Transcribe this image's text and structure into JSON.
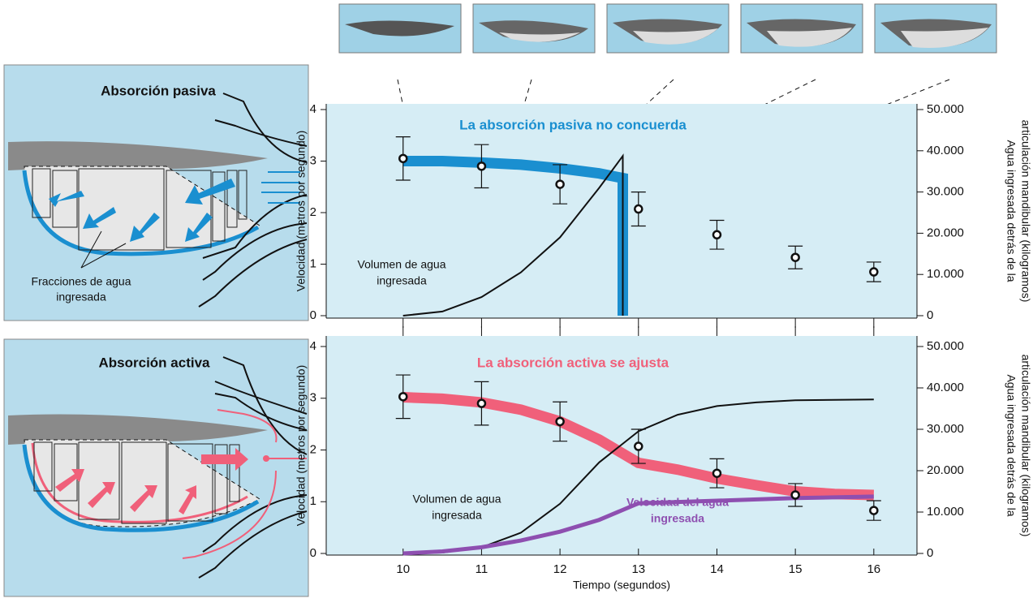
{
  "illustrations": [
    {
      "title": "Absorción pasiva",
      "title_color": "#1a8fd0",
      "caption": [
        "Fracciones de agua",
        "ingresada"
      ]
    },
    {
      "title": "Absorción activa",
      "title_color": "#f0607a"
    }
  ],
  "chart_data": [
    {
      "type": "line",
      "title": "La absorción pasiva no concuerda",
      "title_color": "#1a8fd0",
      "ylabel": "Velocidad (metros por segundo)",
      "y2label": [
        "Agua ingresada detrás de la",
        "articulación mandibular (kilogramos)"
      ],
      "xlim": [
        9.02,
        16.55
      ],
      "xticks": [
        10,
        11,
        12,
        13,
        14,
        15,
        16
      ],
      "ylim": [
        0,
        4
      ],
      "yticks": [
        0,
        1,
        2,
        3,
        4
      ],
      "y2lim": [
        0,
        50000
      ],
      "y2ticks": [
        0,
        {
          "value": 10000,
          "label": "10.000"
        },
        {
          "value": 20000,
          "label": "20.000"
        },
        {
          "value": 30000,
          "label": "30.000"
        },
        {
          "value": 40000,
          "label": "40.000"
        },
        {
          "value": 50000,
          "label": "50.000"
        }
      ],
      "series": [
        {
          "style": "thick",
          "color": "#1a8fd0",
          "x": [
            10,
            10.5,
            11,
            11.5,
            12,
            12.5,
            12.8,
            12.8
          ],
          "values": [
            3.0,
            3.0,
            2.97,
            2.93,
            2.86,
            2.76,
            2.67,
            0
          ]
        },
        {
          "style": "thin",
          "color": "#111111",
          "axis": "y2",
          "label": [
            "Volumen de agua",
            "ingresada"
          ],
          "x": [
            10,
            10.5,
            11,
            11.5,
            12,
            12.5,
            12.8,
            12.8
          ],
          "values": [
            0,
            1000,
            4500,
            10500,
            19000,
            31000,
            38750,
            0
          ]
        },
        {
          "style": "points",
          "color": "#111111",
          "x": [
            10,
            11,
            12,
            13,
            14,
            15,
            16
          ],
          "values": [
            3.05,
            2.9,
            2.55,
            2.07,
            1.57,
            1.13,
            0.85
          ],
          "errors": [
            0.42,
            0.42,
            0.38,
            0.33,
            0.28,
            0.22,
            0.19
          ]
        }
      ]
    },
    {
      "type": "line",
      "title": "La absorción activa se ajusta",
      "title_color": "#f0607a",
      "xlabel": "Tiempo (segundos)",
      "ylabel": "Velocidad (metros por segundo)",
      "y2label": [
        "Agua ingresada detrás de la",
        "articulación mandibular (kilogramos)"
      ],
      "xlim": [
        9.02,
        16.55
      ],
      "xticks": [
        10,
        11,
        12,
        13,
        14,
        15,
        16
      ],
      "ylim": [
        0,
        4
      ],
      "yticks": [
        0,
        1,
        2,
        3,
        4
      ],
      "y2lim": [
        0,
        50000
      ],
      "y2ticks": [
        0,
        {
          "value": 10000,
          "label": "10.000"
        },
        {
          "value": 20000,
          "label": "20.000"
        },
        {
          "value": 30000,
          "label": "30.000"
        },
        {
          "value": 40000,
          "label": "40.000"
        },
        {
          "value": 50000,
          "label": "50.000"
        }
      ],
      "series": [
        {
          "style": "thick",
          "color": "#f0607a",
          "x": [
            10,
            10.5,
            11,
            11.5,
            12,
            12.5,
            13,
            13.5,
            14,
            14.5,
            15,
            15.5,
            16
          ],
          "values": [
            3.02,
            2.99,
            2.92,
            2.78,
            2.55,
            2.2,
            1.75,
            1.62,
            1.45,
            1.32,
            1.2,
            1.15,
            1.13
          ]
        },
        {
          "style": "thin",
          "color": "#111111",
          "axis": "y2",
          "label": [
            "Volumen de agua",
            "ingresada"
          ],
          "x": [
            10,
            10.5,
            11,
            11.5,
            12,
            12.5,
            13,
            13.5,
            14,
            14.5,
            15,
            16
          ],
          "values": [
            0,
            200,
            1500,
            5000,
            12000,
            22000,
            29500,
            33500,
            35600,
            36500,
            37000,
            37200
          ]
        },
        {
          "style": "medium",
          "color": "#8e4fb0",
          "label": [
            "Velocidad del agua",
            "ingresada"
          ],
          "x": [
            10,
            10.5,
            11,
            11.5,
            12,
            12.5,
            13,
            14,
            15,
            16
          ],
          "values": [
            0,
            0.04,
            0.12,
            0.25,
            0.42,
            0.65,
            0.97,
            1.02,
            1.07,
            1.1
          ]
        },
        {
          "style": "points",
          "color": "#111111",
          "x": [
            10,
            11,
            12,
            13,
            14,
            15,
            16
          ],
          "values": [
            3.03,
            2.9,
            2.55,
            2.07,
            1.55,
            1.13,
            0.83
          ],
          "errors": [
            0.42,
            0.42,
            0.38,
            0.33,
            0.28,
            0.22,
            0.19
          ]
        }
      ]
    }
  ]
}
